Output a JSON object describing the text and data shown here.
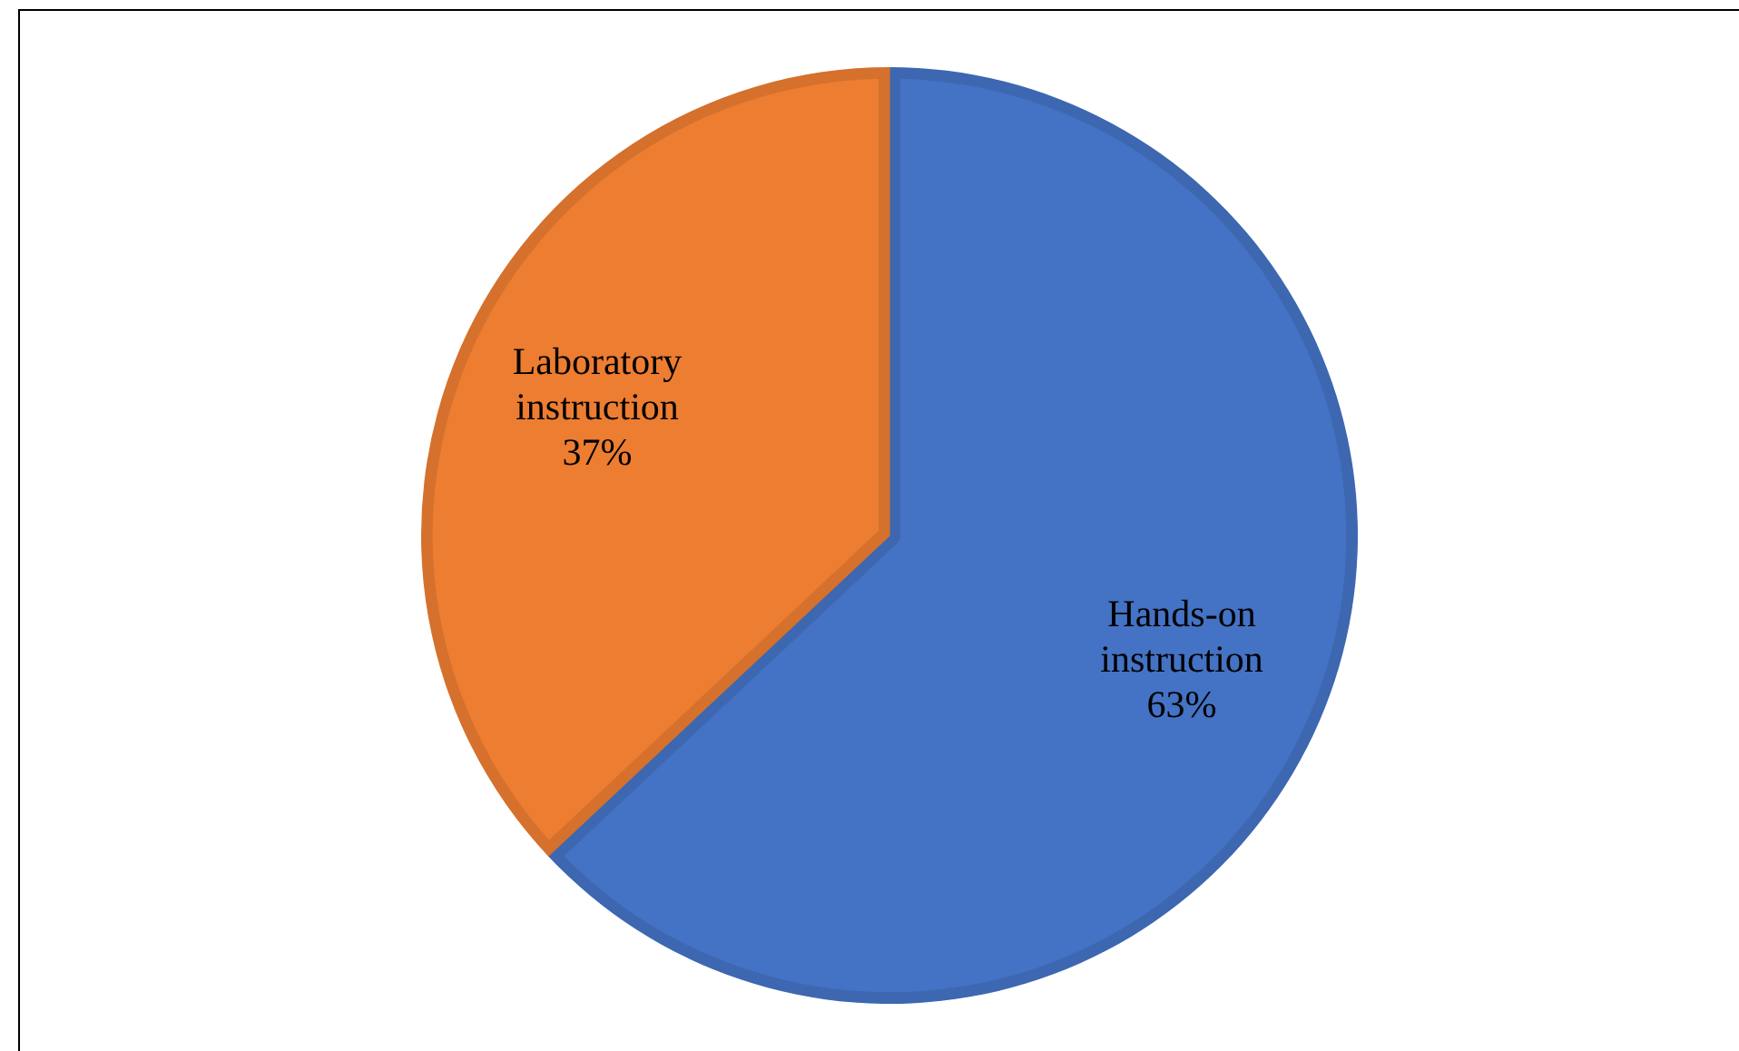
{
  "chart_data": {
    "type": "pie",
    "categories": [
      "Hands-on instruction",
      "Laboratory instruction"
    ],
    "values": [
      63,
      37
    ],
    "colors": [
      "#4472c4",
      "#ed7d31"
    ],
    "value_labels": [
      "63%",
      "37%"
    ],
    "legend": false
  }
}
